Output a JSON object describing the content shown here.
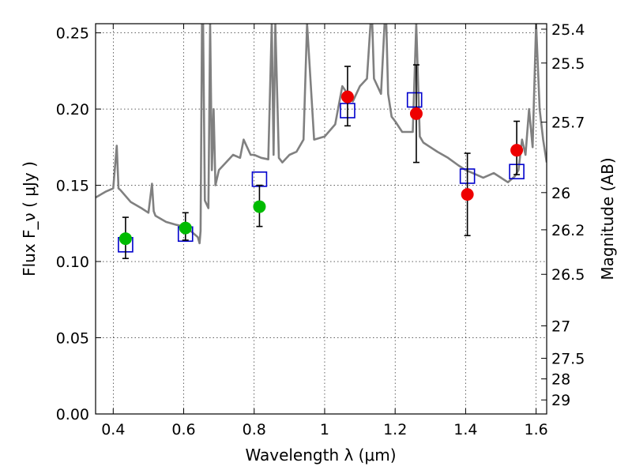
{
  "chart_data": {
    "type": "scatter",
    "xlabel": "Wavelength  λ (μm)",
    "ylabel": "Flux  F_ν  ( μJy )",
    "y2label": "Magnitude (AB)",
    "xlim": [
      0.35,
      1.63
    ],
    "ylim": [
      0.0,
      0.256
    ],
    "grid": true,
    "x_ticks": [
      0.4,
      0.6,
      0.8,
      1.0,
      1.2,
      1.4,
      1.6
    ],
    "x_tick_labels": [
      "0.4",
      "0.6",
      "0.8",
      "1",
      "1.2",
      "1.4",
      "1.6"
    ],
    "y_ticks": [
      0.0,
      0.05,
      0.1,
      0.15,
      0.2,
      0.25
    ],
    "y_tick_labels": [
      "0.00",
      "0.05",
      "0.10",
      "0.15",
      "0.20",
      "0.25"
    ],
    "y2_ticks": [
      {
        "label": "25.4",
        "flux": 0.2524
      },
      {
        "label": "25.5",
        "flux": 0.2302
      },
      {
        "label": "25.7",
        "flux": 0.1914
      },
      {
        "label": "26",
        "flux": 0.1452
      },
      {
        "label": "26.2",
        "flux": 0.1208
      },
      {
        "label": "26.5",
        "flux": 0.0916
      },
      {
        "label": "27",
        "flux": 0.0578
      },
      {
        "label": "27.5",
        "flux": 0.0365
      },
      {
        "label": "28",
        "flux": 0.023
      },
      {
        "label": "29",
        "flux": 0.0092
      }
    ],
    "series": [
      {
        "color": "#808080",
        "kind": "line",
        "x": [
          0.35,
          0.38,
          0.4,
          0.41,
          0.415,
          0.42,
          0.45,
          0.48,
          0.5,
          0.51,
          0.515,
          0.52,
          0.55,
          0.58,
          0.6,
          0.62,
          0.64,
          0.645,
          0.648,
          0.652,
          0.655,
          0.66,
          0.67,
          0.675,
          0.68,
          0.685,
          0.69,
          0.7,
          0.72,
          0.74,
          0.76,
          0.77,
          0.78,
          0.79,
          0.8,
          0.82,
          0.84,
          0.85,
          0.855,
          0.86,
          0.87,
          0.88,
          0.9,
          0.92,
          0.94,
          0.95,
          0.97,
          1.0,
          1.03,
          1.05,
          1.08,
          1.1,
          1.12,
          1.13,
          1.135,
          1.14,
          1.16,
          1.17,
          1.175,
          1.18,
          1.19,
          1.2,
          1.22,
          1.25,
          1.26,
          1.27,
          1.28,
          1.3,
          1.32,
          1.35,
          1.38,
          1.4,
          1.42,
          1.45,
          1.48,
          1.5,
          1.52,
          1.54,
          1.55,
          1.56,
          1.57,
          1.58,
          1.59,
          1.6,
          1.61,
          1.62,
          1.63
        ],
        "y": [
          0.142,
          0.146,
          0.148,
          0.176,
          0.148,
          0.147,
          0.139,
          0.135,
          0.132,
          0.151,
          0.133,
          0.13,
          0.126,
          0.124,
          0.123,
          0.12,
          0.116,
          0.112,
          0.12,
          0.256,
          0.256,
          0.14,
          0.135,
          0.256,
          0.16,
          0.2,
          0.15,
          0.16,
          0.165,
          0.17,
          0.168,
          0.18,
          0.175,
          0.17,
          0.17,
          0.168,
          0.167,
          0.256,
          0.17,
          0.256,
          0.168,
          0.165,
          0.17,
          0.172,
          0.18,
          0.256,
          0.18,
          0.182,
          0.19,
          0.215,
          0.205,
          0.215,
          0.22,
          0.256,
          0.256,
          0.22,
          0.21,
          0.256,
          0.256,
          0.21,
          0.195,
          0.192,
          0.185,
          0.185,
          0.256,
          0.182,
          0.178,
          0.175,
          0.172,
          0.168,
          0.163,
          0.16,
          0.158,
          0.155,
          0.158,
          0.155,
          0.152,
          0.156,
          0.16,
          0.18,
          0.17,
          0.2,
          0.175,
          0.256,
          0.2,
          0.18,
          0.165
        ]
      },
      {
        "color": "#0000cc",
        "kind": "square",
        "x": [
          0.435,
          0.605,
          0.815,
          1.065,
          1.255,
          1.405,
          1.545
        ],
        "y": [
          0.111,
          0.118,
          0.154,
          0.199,
          0.206,
          0.156,
          0.159
        ]
      },
      {
        "color": "#00bb00",
        "kind": "circle",
        "x": [
          0.435,
          0.605,
          0.815
        ],
        "y": [
          0.115,
          0.122,
          0.136
        ],
        "err_low": [
          0.102,
          0.114,
          0.123
        ],
        "err_high": [
          0.129,
          0.132,
          0.15
        ]
      },
      {
        "color": "#ee0000",
        "kind": "circle",
        "x": [
          1.065,
          1.26,
          1.405,
          1.545
        ],
        "y": [
          0.208,
          0.197,
          0.144,
          0.173
        ],
        "err_low": [
          0.189,
          0.165,
          0.117,
          0.157
        ],
        "err_high": [
          0.228,
          0.229,
          0.171,
          0.192
        ]
      }
    ]
  }
}
